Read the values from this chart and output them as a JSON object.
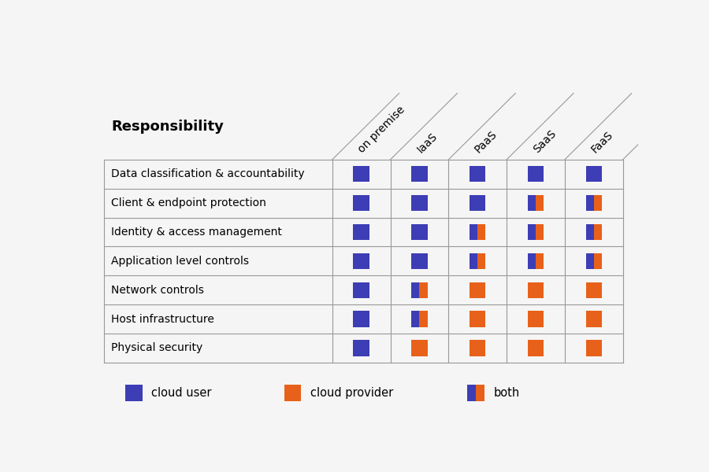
{
  "title": "Responsibility",
  "columns": [
    "on premise",
    "IaaS",
    "PaaS",
    "SaaS",
    "FaaS"
  ],
  "rows": [
    "Data classification & accountability",
    "Client & endpoint protection",
    "Identity & access management",
    "Application level controls",
    "Network controls",
    "Host infrastructure",
    "Physical security"
  ],
  "cell_types": [
    [
      "user",
      "user",
      "user",
      "user",
      "user"
    ],
    [
      "user",
      "user",
      "user",
      "both",
      "both"
    ],
    [
      "user",
      "user",
      "both",
      "both",
      "both"
    ],
    [
      "user",
      "user",
      "both",
      "both",
      "both"
    ],
    [
      "user",
      "both",
      "provider",
      "provider",
      "provider"
    ],
    [
      "user",
      "both",
      "provider",
      "provider",
      "provider"
    ],
    [
      "user",
      "provider",
      "provider",
      "provider",
      "provider"
    ]
  ],
  "color_user": "#3d3db5",
  "color_provider": "#e8611a",
  "bg_color": "#f5f5f5",
  "legend_labels": [
    "cloud user",
    "cloud provider",
    "both"
  ],
  "header_label": "Responsibility"
}
